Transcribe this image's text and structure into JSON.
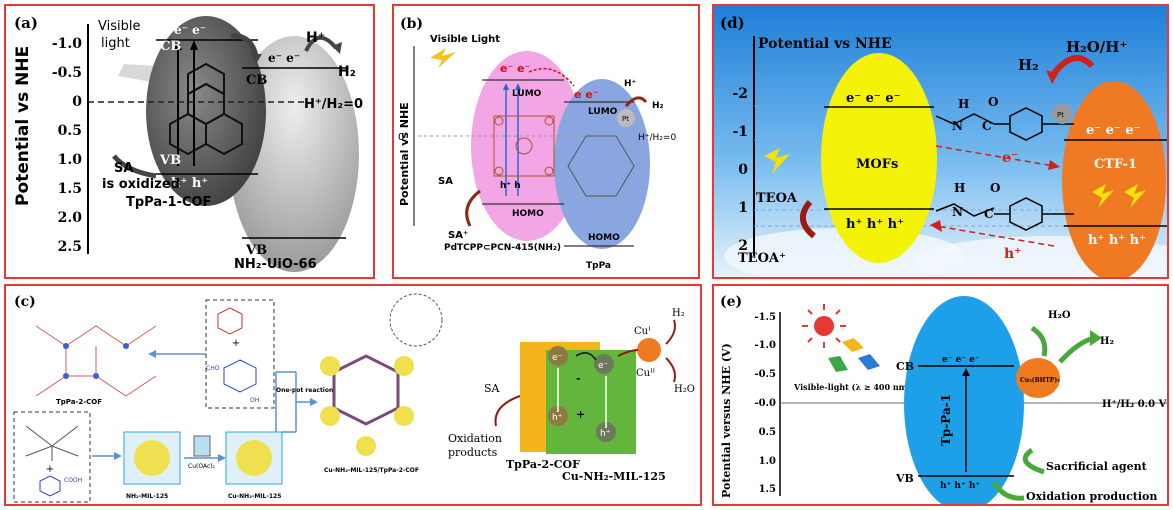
{
  "panel_a": {
    "label": "(a)",
    "axis_title": "Potential vs NHE",
    "ticks": [
      "-1.0",
      "-0.5",
      "0",
      "0.5",
      "1.0",
      "1.5",
      "2.0",
      "2.5"
    ],
    "visible": "Visible",
    "light": "light",
    "cb": "CB",
    "vb": "VB",
    "electrons": "e⁻ e⁻",
    "electrons2": "e⁻ e⁻",
    "holes": "h⁺ h⁺",
    "hplus": "H⁺",
    "h2": "H₂",
    "ref": "H⁺/H₂=0",
    "sa1": "SA",
    "sa2": "is oxidized",
    "cof": "TpPa-1-COF",
    "mof": "NH₂-UiO-66"
  },
  "panel_b": {
    "label": "(b)",
    "visible_light": "Visible Light",
    "axis_title": "Potential vs NHE",
    "zero": "0",
    "lumo1": "LUMO",
    "homo1": "HOMO",
    "lumo2": "LUMO",
    "homo2": "HOMO",
    "e_left": "e⁻ e⁻",
    "e_right": "e e⁻",
    "hplus": "H⁺",
    "h2": "H₂",
    "pt": "Pt",
    "ref": "H⁺/H₂=0",
    "sa": "SA",
    "sa_plus": "SA⁺",
    "holes": "h⁺ h",
    "pd_label": "PdTCPP⊂PCN-415(NH₂)",
    "tppa": "TpPa"
  },
  "panel_c": {
    "label": "(c)",
    "cof_label": "TpPa-2-COF",
    "one_pot": "One-pot reaction",
    "cu_oac": "Cu(OAc)₂",
    "mil": "NH₂-MIL-125",
    "cu_mil": "Cu-NH₂-MIL-125",
    "composite": "Cu-NH₂-MIL-125/TpPa-2-COF",
    "e1": "e⁻",
    "e2": "e⁻",
    "h1": "h⁺",
    "h2h": "h⁺",
    "cu1": "Cuᴵ",
    "cu2": "Cuᴵᴵ",
    "h2": "H₂",
    "h2o": "H₂O",
    "sa": "SA",
    "oxid": "Oxidation",
    "products": "products",
    "tppa2": "TpPa-2-COF",
    "cumil": "Cu-NH₂-MIL-125",
    "cho": "CHO",
    "oh": "OH",
    "cooh": "COOH"
  },
  "panel_d": {
    "label": "(d)",
    "axis_title": "Potential vs NHE",
    "ticks": [
      "-2",
      "-1",
      "0",
      "1",
      "2"
    ],
    "h2": "H₂",
    "h2o": "H₂O/H⁺",
    "pt": "Pt",
    "mofs": "MOFs",
    "ctf": "CTF-1",
    "e_mof": "e⁻ e⁻ e⁻",
    "h_mof": "h⁺ h⁺ h⁺",
    "e_ctf": "e⁻ e⁻ e⁻",
    "h_ctf": "h⁺ h⁺ h⁺",
    "e_mid": "e⁻",
    "h_mid": "h⁺",
    "teoa": "TEOA",
    "teoa_plus": "TEOA⁺",
    "nh1": "N",
    "h1": "H",
    "o1": "O",
    "c1": "C"
  },
  "panel_e": {
    "label": "(e)",
    "axis_title": "Potential versus NHE (V)",
    "ticks": [
      "-1.5",
      "-1.0",
      "-0.5",
      "-0.0",
      "0.5",
      "1.0",
      "1.5"
    ],
    "cb": "CB",
    "vb": "VB",
    "tppa": "Tp-Pa-1",
    "electrons": "e⁻ e⁻ e⁻",
    "holes": "h⁺ h⁺ h⁺",
    "visible": "Visible-light (λ ≥ 400 nm)",
    "h2o": "H₂O",
    "h2": "H₂",
    "ref": "H⁺/H₂ 0.0 V",
    "cu": "Cu₃(BHTP)₂",
    "sacrificial": "Sacrificial agent",
    "oxidation": "Oxidation production"
  },
  "colors": {
    "border": "#e53935",
    "pink": "#f3a6e6",
    "blue_oval": "#8aa6e0",
    "yellow": "#f5f20a",
    "orange": "#f07a24",
    "cyan": "#1ea0e8",
    "green": "#78c244"
  }
}
